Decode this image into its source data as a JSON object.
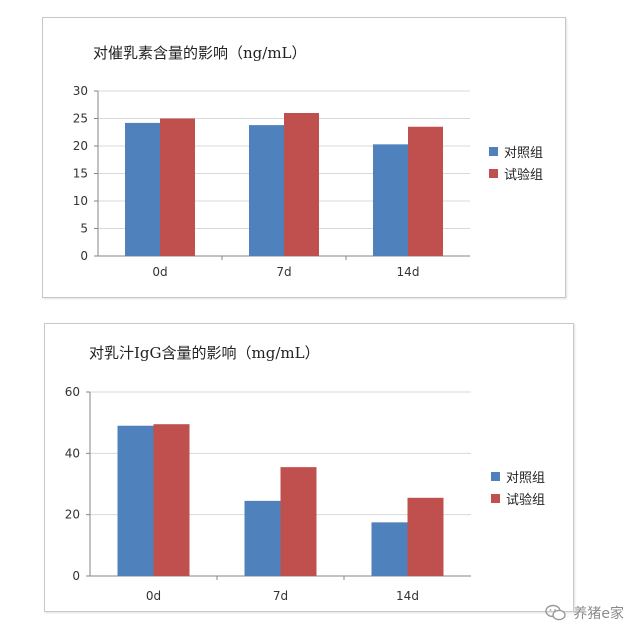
{
  "colors": {
    "control": "#4F81BD",
    "test": "#C0504D",
    "axis": "#868686",
    "grid": "#d9d9d9"
  },
  "legend": {
    "control_label": "对照组",
    "test_label": "试验组"
  },
  "watermark": {
    "text": "养猪e家",
    "icon": "wechat-icon"
  },
  "chart_data": [
    {
      "type": "bar",
      "title": "对催乳素含量的影响（ng/mL）",
      "categories": [
        "0d",
        "7d",
        "14d"
      ],
      "series": [
        {
          "name": "对照组",
          "values": [
            24.2,
            23.8,
            20.3
          ]
        },
        {
          "name": "试验组",
          "values": [
            25.0,
            26.0,
            23.5
          ]
        }
      ],
      "ylim": [
        0,
        30
      ],
      "yticks": [
        0,
        5,
        10,
        15,
        20,
        25,
        30
      ],
      "grid": true,
      "legend_position": "right"
    },
    {
      "type": "bar",
      "title": "对乳汁IgG含量的影响（mg/mL）",
      "categories": [
        "0d",
        "7d",
        "14d"
      ],
      "series": [
        {
          "name": "对照组",
          "values": [
            49.0,
            24.5,
            17.5
          ]
        },
        {
          "name": "试验组",
          "values": [
            49.5,
            35.5,
            25.5
          ]
        }
      ],
      "ylim": [
        0,
        60
      ],
      "yticks": [
        0,
        20,
        40,
        60
      ],
      "grid": true,
      "legend_position": "right"
    }
  ]
}
